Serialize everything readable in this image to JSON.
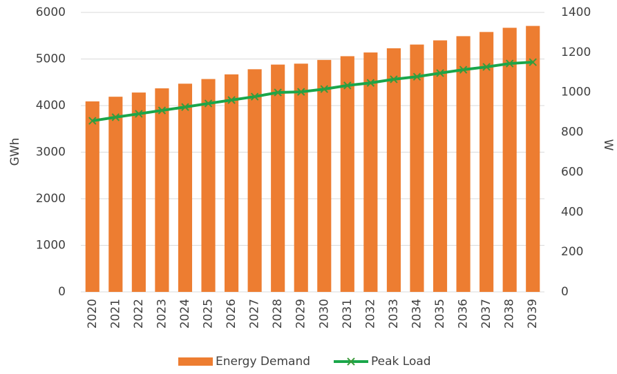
{
  "chart_data": {
    "type": "bar",
    "y_label": "GWh",
    "y2_label": "W",
    "categories": [
      "2020",
      "2021",
      "2022",
      "2023",
      "2024",
      "2025",
      "2026",
      "2027",
      "2028",
      "2029",
      "2030",
      "2031",
      "2032",
      "2033",
      "2034",
      "2035",
      "2036",
      "2037",
      "2038",
      "2039"
    ],
    "series": [
      {
        "name": "Energy Demand",
        "type": "bar",
        "color": "#ed7d31",
        "values": [
          4090,
          4190,
          4280,
          4370,
          4470,
          4570,
          4670,
          4780,
          4880,
          4900,
          4980,
          5060,
          5140,
          5230,
          5310,
          5400,
          5490,
          5580,
          5670,
          5710
        ]
      },
      {
        "name": "Peak Load",
        "type": "line",
        "axis": "y2",
        "color": "#1aa64a",
        "marker_color": "#3a9a3a",
        "values": [
          857,
          875,
          892,
          909,
          926,
          944,
          961,
          978,
          999,
          1002,
          1016,
          1034,
          1047,
          1065,
          1078,
          1096,
          1113,
          1127,
          1144,
          1151
        ]
      }
    ],
    "ylim": [
      0,
      6000
    ],
    "yticks": [
      0,
      1000,
      2000,
      3000,
      4000,
      5000,
      6000
    ],
    "y2lim": [
      0,
      1400
    ],
    "y2ticks": [
      0,
      200,
      400,
      600,
      800,
      1000,
      1200,
      1400
    ],
    "grid": true,
    "legend": "bottom"
  }
}
